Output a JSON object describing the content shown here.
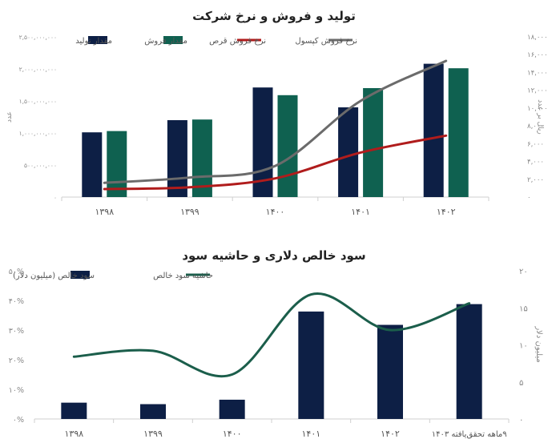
{
  "chart_data": [
    {
      "type": "bar",
      "title": "تولید و فروش و نرخ شرکت",
      "categories": [
        "۱۳۹۸",
        "۱۳۹۹",
        "۱۴۰۰",
        "۱۴۰۱",
        "۱۴۰۲"
      ],
      "ylabel_left": "عدد",
      "ylabel_right": "ریال بر عدد",
      "ylim_left": [
        0,
        2500000000
      ],
      "ylim_right": [
        0,
        18000
      ],
      "yticks_left": [
        "۰",
        "۵۰۰,۰۰۰,۰۰۰",
        "۱,۰۰۰,۰۰۰,۰۰۰",
        "۱,۵۰۰,۰۰۰,۰۰۰",
        "۲,۰۰۰,۰۰۰,۰۰۰",
        "۲,۵۰۰,۰۰۰,۰۰۰"
      ],
      "yticks_right": [
        "۰",
        "۲,۰۰۰",
        "۴,۰۰۰",
        "۶,۰۰۰",
        "۸,۰۰۰",
        "۱۰,۰۰۰",
        "۱۲,۰۰۰",
        "۱۴,۰۰۰",
        "۱۶,۰۰۰",
        "۱۸,۰۰۰"
      ],
      "legend_position": "top",
      "series": [
        {
          "name": "مقدار تولید",
          "kind": "bar",
          "axis": "left",
          "color": "#0d1f45",
          "values": [
            1010000000,
            1200000000,
            1710000000,
            1400000000,
            2080000000
          ]
        },
        {
          "name": "مقدار فروش",
          "kind": "bar",
          "axis": "left",
          "color": "#0f6150",
          "values": [
            1030000000,
            1210000000,
            1590000000,
            1700000000,
            2010000000
          ]
        },
        {
          "name": "نرخ فروش قرص",
          "kind": "line",
          "axis": "right",
          "color": "#b01c1c",
          "values": [
            900,
            1100,
            2100,
            5000,
            6900
          ]
        },
        {
          "name": "نرخ فروش کپسول",
          "kind": "line",
          "axis": "right",
          "color": "#6b6b6b",
          "values": [
            1600,
            2200,
            3500,
            10800,
            15300
          ]
        }
      ]
    },
    {
      "type": "bar",
      "title": "سود خالص دلاری و حاشیه سود",
      "categories": [
        "۱۳۹۸",
        "۱۳۹۹",
        "۱۴۰۰",
        "۱۴۰۱",
        "۱۴۰۲",
        "۹ماهه تحقق‌یافته ۱۴۰۳"
      ],
      "ylabel_right": "میلیون دلار",
      "ylim_left": [
        0,
        50
      ],
      "ylim_right": [
        0,
        20
      ],
      "yticks_left": [
        "۰%",
        "۱۰%",
        "۲۰%",
        "۳۰%",
        "۴۰%",
        "۵۰%"
      ],
      "yticks_right": [
        "۰",
        "۵",
        "۱۰",
        "۱۵",
        "۲۰"
      ],
      "legend_position": "top",
      "series": [
        {
          "name": "سود خالص (میلیون دلار)",
          "kind": "bar",
          "axis": "right",
          "color": "#0d1f45",
          "values": [
            2.2,
            2.0,
            2.6,
            14.5,
            12.7,
            15.5
          ]
        },
        {
          "name": "حاشیه سود خالص",
          "kind": "line",
          "axis": "left",
          "color": "#1b5e4b",
          "values": [
            21,
            23,
            15,
            42,
            30,
            39
          ]
        }
      ]
    }
  ]
}
